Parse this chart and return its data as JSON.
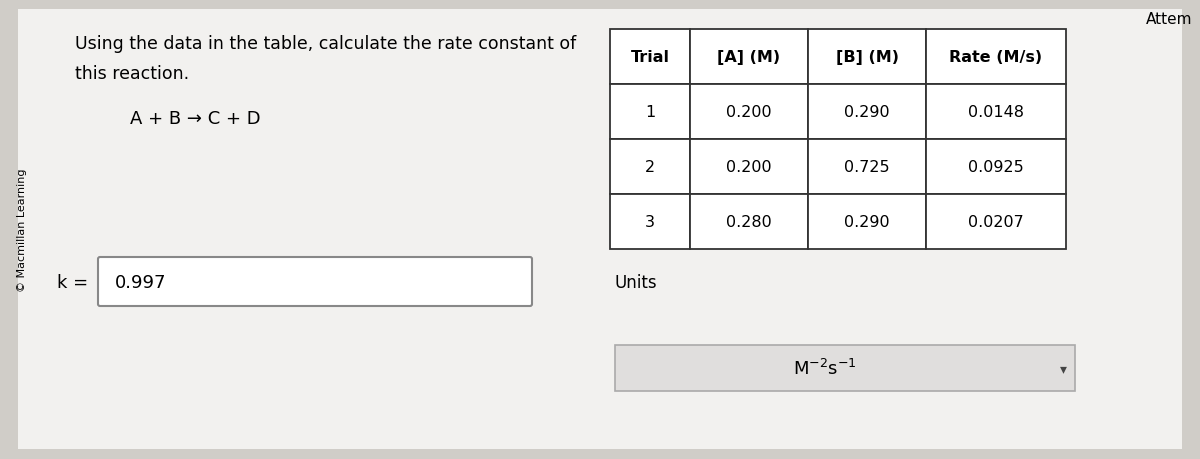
{
  "bg_color": "#d0cdc8",
  "panel_color": "#f0efed",
  "white": "#ffffff",
  "title_text1": "Using the data in the table, calculate the rate constant of",
  "title_text2": "this reaction.",
  "reaction": "A + B → C + D",
  "copyright": "© Macmillan Learning",
  "k_label": "k =",
  "k_value": "0.997",
  "units_label": "Units",
  "attem_text": "Attem",
  "table_headers": [
    "Trial",
    "[A] (M)",
    "[B] (M)",
    "Rate (M/s)"
  ],
  "table_data": [
    [
      "1",
      "0.200",
      "0.290",
      "0.0148"
    ],
    [
      "2",
      "0.200",
      "0.725",
      "0.0925"
    ],
    [
      "3",
      "0.280",
      "0.290",
      "0.0207"
    ]
  ]
}
